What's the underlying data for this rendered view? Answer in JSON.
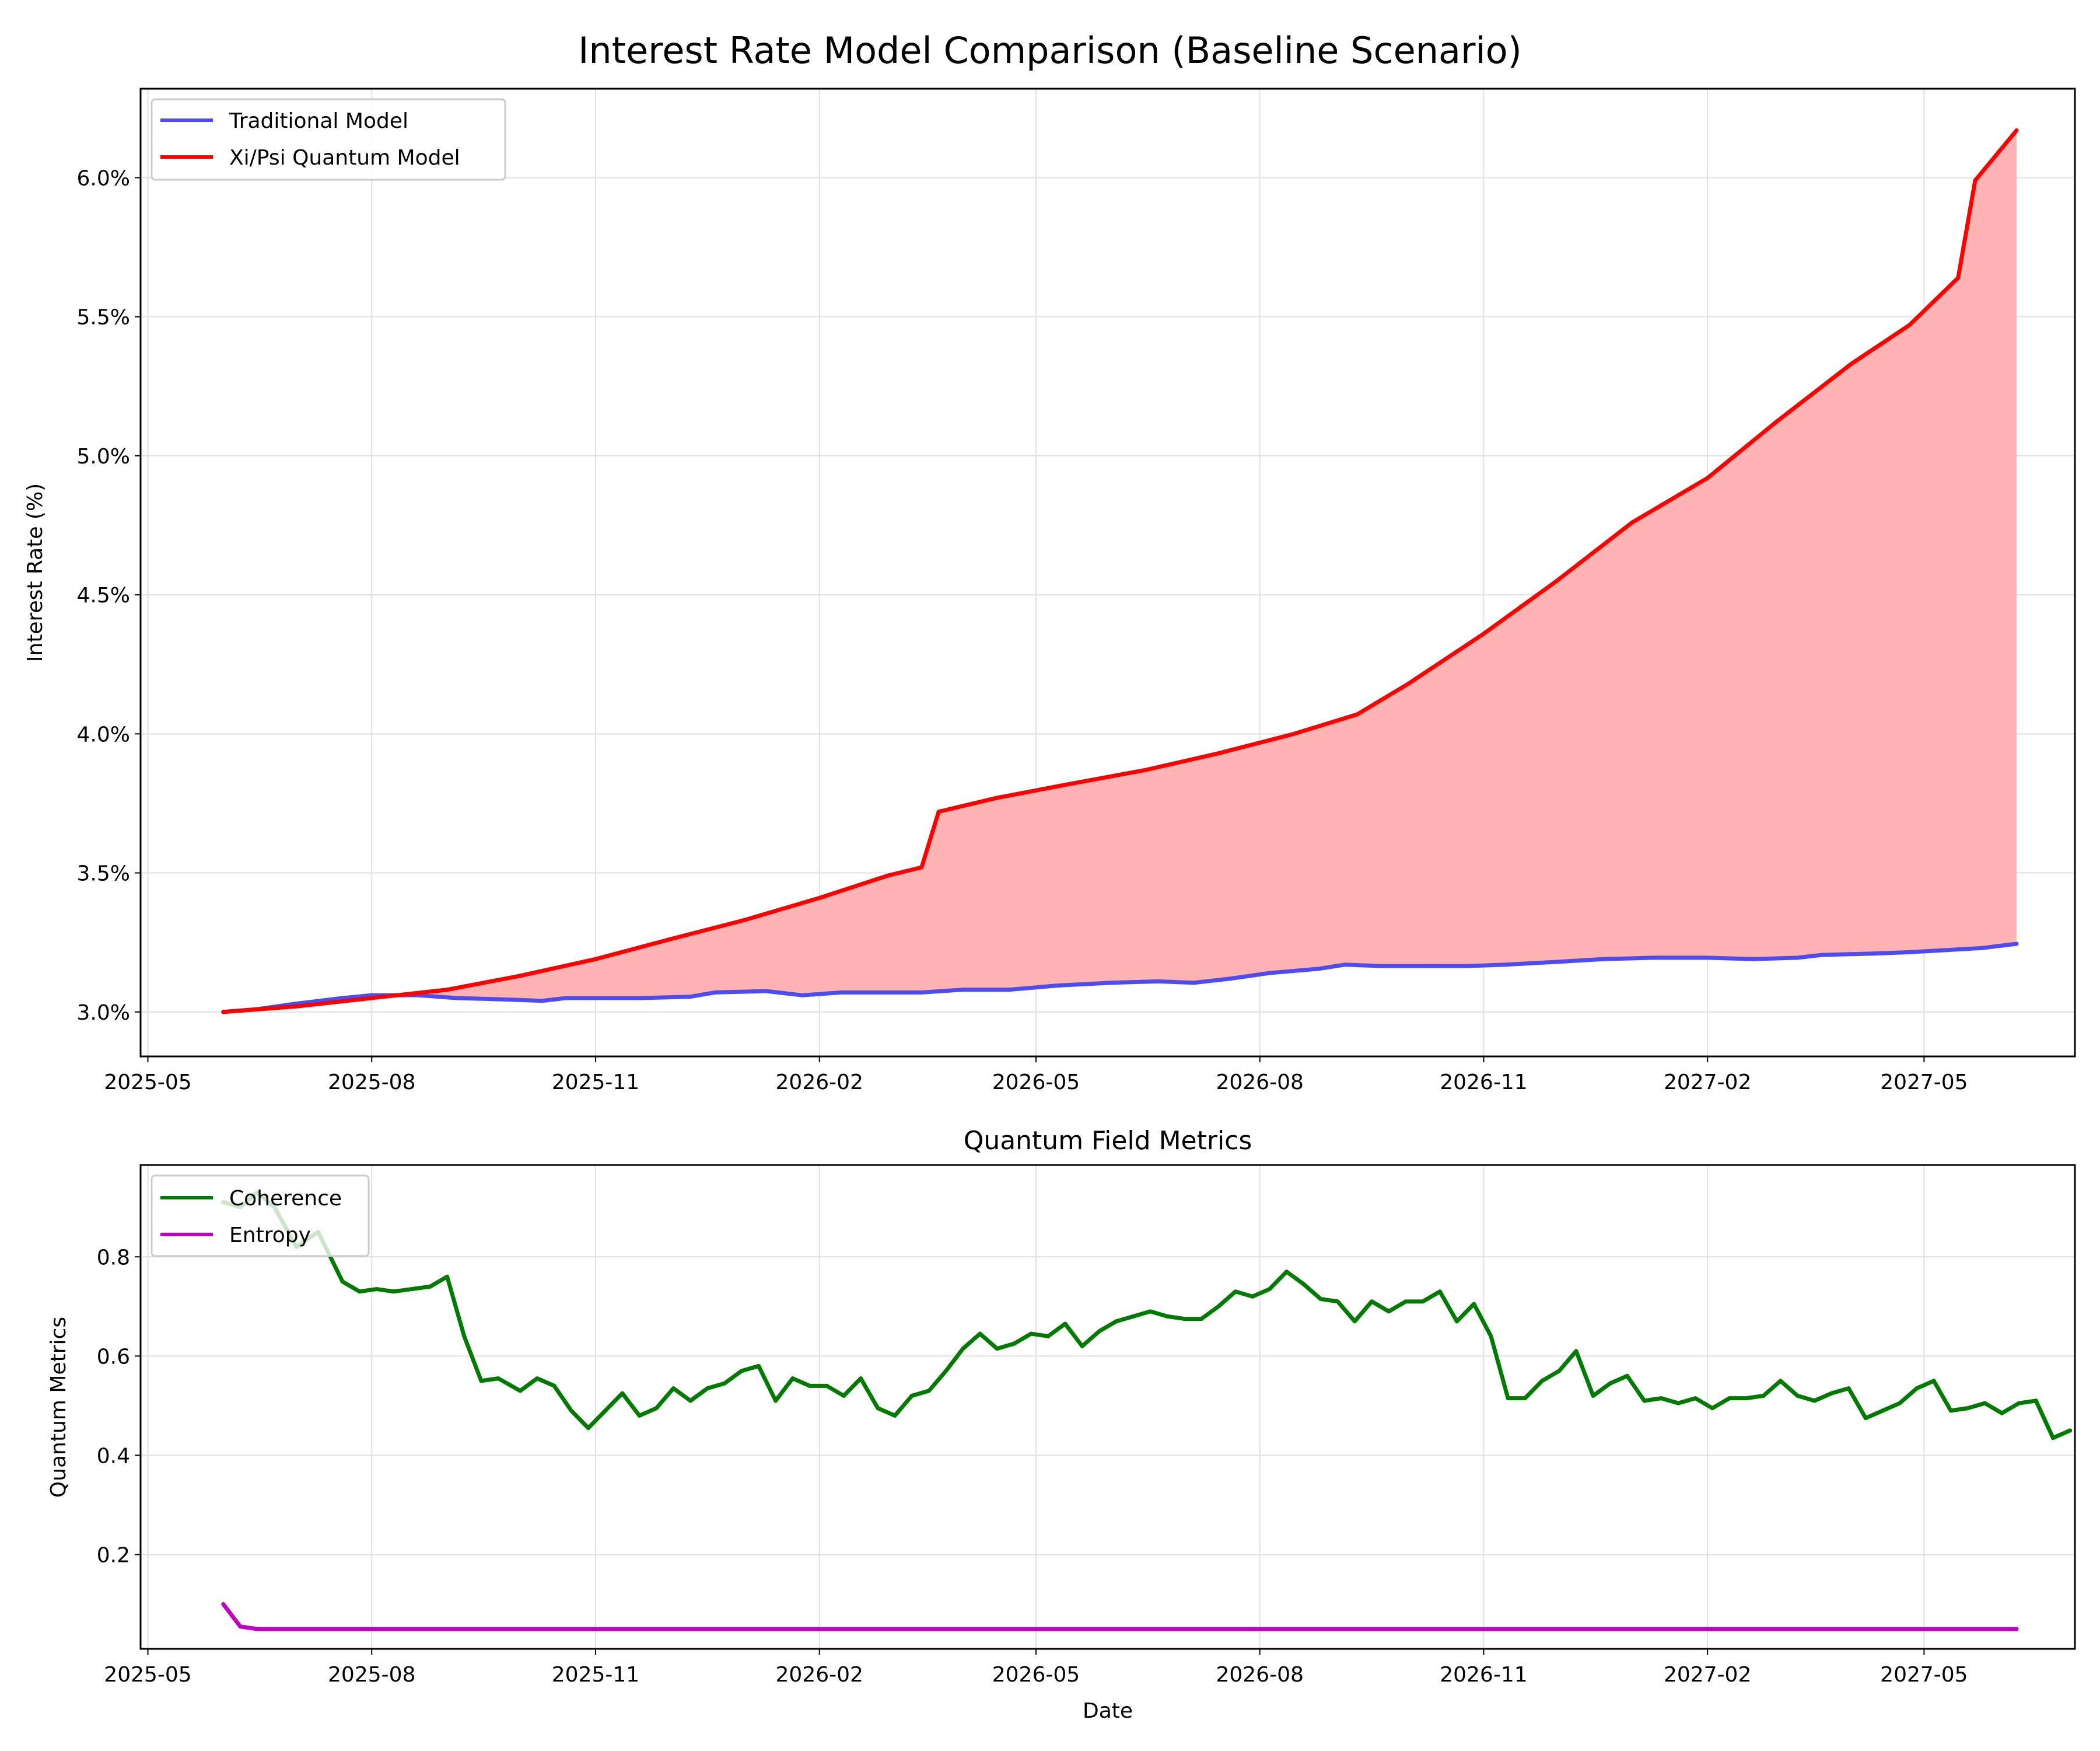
{
  "figure": {
    "title": "Interest Rate Model Comparison (Baseline Scenario)"
  },
  "colors": {
    "traditional": "#4c4cf5",
    "quantum": "#ff0000",
    "fill": "#ffb3b3",
    "coherence": "#007a00",
    "entropy": "#c000c0",
    "grid": "#e0e0e0"
  },
  "chart_data": [
    {
      "type": "line",
      "title": "",
      "xlabel": "",
      "ylabel": "Interest Rate (%)",
      "x_ticks": [
        "2025-05",
        "2025-08",
        "2025-11",
        "2026-02",
        "2026-05",
        "2026-08",
        "2026-11",
        "2027-02",
        "2027-05"
      ],
      "y_ticks": [
        "3.0%",
        "3.5%",
        "4.0%",
        "4.5%",
        "5.0%",
        "5.5%",
        "6.0%"
      ],
      "xlim": [
        "2025-04-28",
        "2027-07-02"
      ],
      "ylim": [
        2.84,
        6.32
      ],
      "grid": true,
      "legend": "top-left",
      "fill_between": [
        "Traditional Model",
        "Xi/Psi Quantum Model"
      ],
      "series": [
        {
          "name": "Traditional Model",
          "color_key": "traditional",
          "points": [
            [
              "2025-06-01",
              3.0
            ],
            [
              "2025-06-15",
              3.01
            ],
            [
              "2025-07-01",
              3.03
            ],
            [
              "2025-07-20",
              3.05
            ],
            [
              "2025-08-01",
              3.06
            ],
            [
              "2025-08-20",
              3.06
            ],
            [
              "2025-09-05",
              3.05
            ],
            [
              "2025-09-25",
              3.045
            ],
            [
              "2025-10-10",
              3.04
            ],
            [
              "2025-10-20",
              3.05
            ],
            [
              "2025-11-01",
              3.05
            ],
            [
              "2025-11-20",
              3.05
            ],
            [
              "2025-12-10",
              3.055
            ],
            [
              "2025-12-20",
              3.07
            ],
            [
              "2026-01-10",
              3.075
            ],
            [
              "2026-01-25",
              3.06
            ],
            [
              "2026-02-10",
              3.07
            ],
            [
              "2026-03-01",
              3.07
            ],
            [
              "2026-03-15",
              3.07
            ],
            [
              "2026-04-01",
              3.08
            ],
            [
              "2026-04-20",
              3.08
            ],
            [
              "2026-05-10",
              3.095
            ],
            [
              "2026-06-01",
              3.105
            ],
            [
              "2026-06-20",
              3.11
            ],
            [
              "2026-07-05",
              3.105
            ],
            [
              "2026-07-20",
              3.12
            ],
            [
              "2026-08-05",
              3.14
            ],
            [
              "2026-08-25",
              3.155
            ],
            [
              "2026-09-05",
              3.17
            ],
            [
              "2026-09-20",
              3.165
            ],
            [
              "2026-10-10",
              3.165
            ],
            [
              "2026-10-25",
              3.165
            ],
            [
              "2026-11-10",
              3.17
            ],
            [
              "2026-12-01",
              3.18
            ],
            [
              "2026-12-20",
              3.19
            ],
            [
              "2027-01-10",
              3.195
            ],
            [
              "2027-02-01",
              3.195
            ],
            [
              "2027-02-20",
              3.19
            ],
            [
              "2027-03-10",
              3.195
            ],
            [
              "2027-03-20",
              3.205
            ],
            [
              "2027-04-10",
              3.21
            ],
            [
              "2027-04-25",
              3.215
            ],
            [
              "2027-05-15",
              3.225
            ],
            [
              "2027-05-25",
              3.23
            ],
            [
              "2027-06-08",
              3.245
            ]
          ]
        },
        {
          "name": "Xi/Psi Quantum Model",
          "color_key": "quantum",
          "points": [
            [
              "2025-06-01",
              3.0
            ],
            [
              "2025-07-01",
              3.02
            ],
            [
              "2025-08-01",
              3.05
            ],
            [
              "2025-09-01",
              3.08
            ],
            [
              "2025-10-01",
              3.13
            ],
            [
              "2025-11-01",
              3.19
            ],
            [
              "2025-12-01",
              3.26
            ],
            [
              "2026-01-01",
              3.33
            ],
            [
              "2026-02-01",
              3.41
            ],
            [
              "2026-03-01",
              3.49
            ],
            [
              "2026-03-15",
              3.52
            ],
            [
              "2026-03-22",
              3.72
            ],
            [
              "2026-04-15",
              3.77
            ],
            [
              "2026-05-15",
              3.82
            ],
            [
              "2026-06-15",
              3.87
            ],
            [
              "2026-07-15",
              3.93
            ],
            [
              "2026-08-15",
              4.0
            ],
            [
              "2026-09-10",
              4.07
            ],
            [
              "2026-10-01",
              4.18
            ],
            [
              "2026-11-01",
              4.36
            ],
            [
              "2026-12-01",
              4.55
            ],
            [
              "2027-01-01",
              4.76
            ],
            [
              "2027-02-01",
              4.92
            ],
            [
              "2027-03-01",
              5.12
            ],
            [
              "2027-04-01",
              5.33
            ],
            [
              "2027-04-25",
              5.47
            ],
            [
              "2027-05-15",
              5.64
            ],
            [
              "2027-05-22",
              5.99
            ],
            [
              "2027-06-08",
              6.17
            ]
          ]
        }
      ]
    },
    {
      "type": "line",
      "title": "Quantum Field Metrics",
      "xlabel": "Date",
      "ylabel": "Quantum Metrics",
      "x_ticks": [
        "2025-05",
        "2025-08",
        "2025-11",
        "2026-02",
        "2026-05",
        "2026-08",
        "2026-11",
        "2027-02",
        "2027-05"
      ],
      "y_ticks": [
        "0.2",
        "0.4",
        "0.6",
        "0.8"
      ],
      "xlim": [
        "2025-04-28",
        "2027-07-02"
      ],
      "ylim": [
        0.01,
        0.985
      ],
      "grid": true,
      "legend": "top-left",
      "series": [
        {
          "name": "Coherence",
          "color_key": "coherence",
          "points": [
            [
              "2025-06-01",
              0.91
            ],
            [
              "2025-06-08",
              0.9
            ],
            [
              "2025-06-15",
              0.93
            ],
            [
              "2025-06-22",
              0.9
            ],
            [
              "2025-07-01",
              0.82
            ],
            [
              "2025-07-10",
              0.85
            ],
            [
              "2025-07-20",
              0.75
            ],
            [
              "2025-07-27",
              0.73
            ],
            [
              "2025-08-03",
              0.735
            ],
            [
              "2025-08-10",
              0.73
            ],
            [
              "2025-08-25",
              0.74
            ],
            [
              "2025-09-01",
              0.76
            ],
            [
              "2025-09-08",
              0.64
            ],
            [
              "2025-09-15",
              0.55
            ],
            [
              "2025-09-22",
              0.555
            ],
            [
              "2025-10-01",
              0.53
            ],
            [
              "2025-10-08",
              0.555
            ],
            [
              "2025-10-15",
              0.54
            ],
            [
              "2025-10-22",
              0.49
            ],
            [
              "2025-10-29",
              0.455
            ],
            [
              "2025-11-05",
              0.49
            ],
            [
              "2025-11-12",
              0.525
            ],
            [
              "2025-11-19",
              0.48
            ],
            [
              "2025-11-26",
              0.495
            ],
            [
              "2025-12-03",
              0.535
            ],
            [
              "2025-12-10",
              0.51
            ],
            [
              "2025-12-17",
              0.535
            ],
            [
              "2025-12-24",
              0.545
            ],
            [
              "2025-12-31",
              0.57
            ],
            [
              "2026-01-07",
              0.58
            ],
            [
              "2026-01-14",
              0.51
            ],
            [
              "2026-01-21",
              0.555
            ],
            [
              "2026-01-28",
              0.54
            ],
            [
              "2026-02-04",
              0.54
            ],
            [
              "2026-02-11",
              0.52
            ],
            [
              "2026-02-18",
              0.555
            ],
            [
              "2026-02-25",
              0.495
            ],
            [
              "2026-03-04",
              0.48
            ],
            [
              "2026-03-11",
              0.52
            ],
            [
              "2026-03-18",
              0.53
            ],
            [
              "2026-03-25",
              0.57
            ],
            [
              "2026-04-01",
              0.615
            ],
            [
              "2026-04-08",
              0.645
            ],
            [
              "2026-04-15",
              0.615
            ],
            [
              "2026-04-22",
              0.625
            ],
            [
              "2026-04-29",
              0.645
            ],
            [
              "2026-05-06",
              0.64
            ],
            [
              "2026-05-13",
              0.665
            ],
            [
              "2026-05-20",
              0.62
            ],
            [
              "2026-05-27",
              0.65
            ],
            [
              "2026-06-03",
              0.67
            ],
            [
              "2026-06-10",
              0.68
            ],
            [
              "2026-06-17",
              0.69
            ],
            [
              "2026-06-24",
              0.68
            ],
            [
              "2026-07-01",
              0.675
            ],
            [
              "2026-07-08",
              0.675
            ],
            [
              "2026-07-15",
              0.7
            ],
            [
              "2026-07-22",
              0.73
            ],
            [
              "2026-07-29",
              0.72
            ],
            [
              "2026-08-05",
              0.735
            ],
            [
              "2026-08-12",
              0.77
            ],
            [
              "2026-08-19",
              0.745
            ],
            [
              "2026-08-26",
              0.715
            ],
            [
              "2026-09-02",
              0.71
            ],
            [
              "2026-09-09",
              0.67
            ],
            [
              "2026-09-16",
              0.71
            ],
            [
              "2026-09-23",
              0.69
            ],
            [
              "2026-09-30",
              0.71
            ],
            [
              "2026-10-07",
              0.71
            ],
            [
              "2026-10-14",
              0.73
            ],
            [
              "2026-10-21",
              0.67
            ],
            [
              "2026-10-28",
              0.705
            ],
            [
              "2026-11-04",
              0.64
            ],
            [
              "2026-11-11",
              0.515
            ],
            [
              "2026-11-18",
              0.515
            ],
            [
              "2026-11-25",
              0.55
            ],
            [
              "2026-12-02",
              0.57
            ],
            [
              "2026-12-09",
              0.61
            ],
            [
              "2026-12-16",
              0.52
            ],
            [
              "2026-12-23",
              0.545
            ],
            [
              "2026-12-30",
              0.56
            ],
            [
              "2027-01-06",
              0.51
            ],
            [
              "2027-01-13",
              0.515
            ],
            [
              "2027-01-20",
              0.505
            ],
            [
              "2027-01-27",
              0.515
            ],
            [
              "2027-02-03",
              0.495
            ],
            [
              "2027-02-10",
              0.515
            ],
            [
              "2027-02-17",
              0.515
            ],
            [
              "2027-02-24",
              0.52
            ],
            [
              "2027-03-03",
              0.55
            ],
            [
              "2027-03-10",
              0.52
            ],
            [
              "2027-03-17",
              0.51
            ],
            [
              "2027-03-24",
              0.525
            ],
            [
              "2027-03-31",
              0.535
            ],
            [
              "2027-04-07",
              0.475
            ],
            [
              "2027-04-14",
              0.49
            ],
            [
              "2027-04-21",
              0.505
            ],
            [
              "2027-04-28",
              0.535
            ],
            [
              "2027-05-05",
              0.55
            ],
            [
              "2027-05-12",
              0.49
            ],
            [
              "2027-05-19",
              0.495
            ],
            [
              "2027-05-26",
              0.505
            ],
            [
              "2027-06-02",
              0.485
            ],
            [
              "2027-06-09",
              0.505
            ],
            [
              "2027-06-16",
              0.51
            ],
            [
              "2027-06-23",
              0.435
            ],
            [
              "2027-06-30",
              0.45
            ]
          ]
        },
        {
          "name": "Entropy",
          "color_key": "entropy",
          "points": [
            [
              "2025-06-01",
              0.1
            ],
            [
              "2025-06-08",
              0.055
            ],
            [
              "2025-06-15",
              0.05
            ],
            [
              "2027-06-08",
              0.05
            ]
          ]
        }
      ]
    }
  ]
}
